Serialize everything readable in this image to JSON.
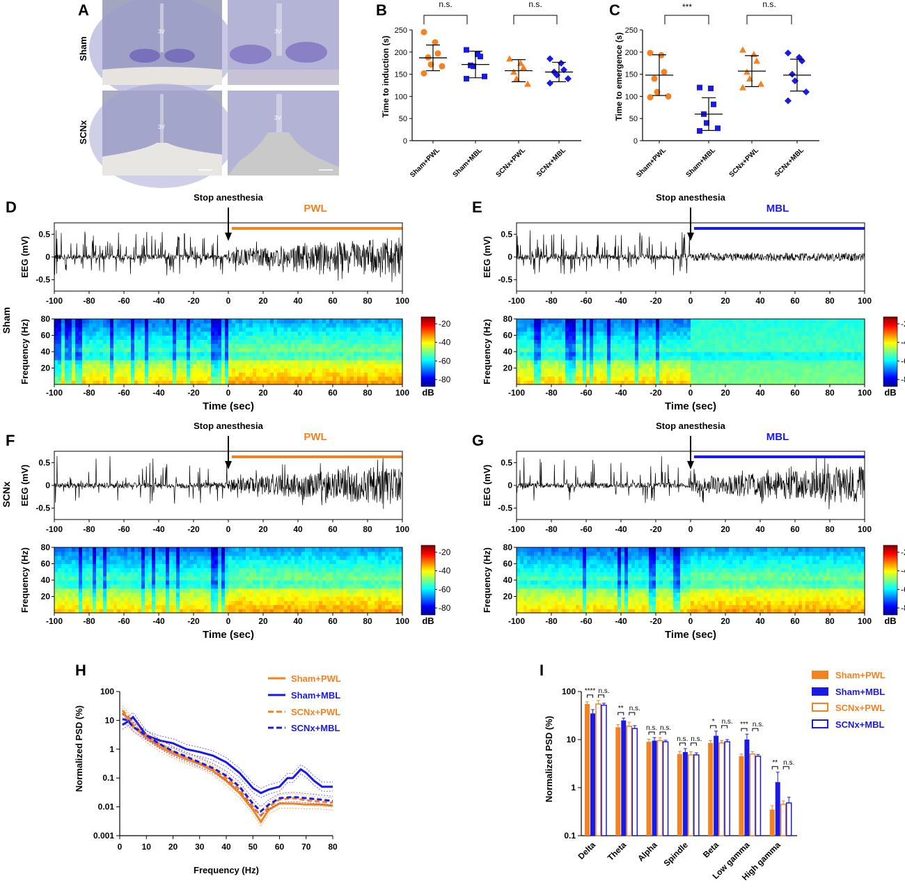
{
  "panels": {
    "A": "A",
    "B": "B",
    "C": "C",
    "D": "D",
    "E": "E",
    "F": "F",
    "G": "G",
    "H": "H",
    "I": "I"
  },
  "row_labels": {
    "sham": "Sham",
    "scnx": "SCNx"
  },
  "histology": {
    "ventricle_label": "3V"
  },
  "colors": {
    "orange": "#F58220",
    "blue": "#1A1AE6",
    "black": "#000000",
    "background": "#ffffff"
  },
  "eeg": {
    "stop_label": "Stop anesthesia",
    "ylabel_eeg": "EEG (mV)",
    "ylabel_spec": "Frequency (Hz)",
    "xlabel": "Time (sec)",
    "colorbar_unit": "dB",
    "colorbar_ticks": [
      "-20",
      "-40",
      "-60",
      "-80"
    ],
    "eeg_yticks": [
      "0.5",
      "0",
      "-0.5"
    ],
    "spec_yticks": [
      "80",
      "60",
      "40",
      "20"
    ],
    "xticks": [
      "-100",
      "-80",
      "-60",
      "-40",
      "-20",
      "0",
      "20",
      "40",
      "60",
      "80",
      "100"
    ],
    "panel_D": {
      "group": "PWL"
    },
    "panel_E": {
      "group": "MBL"
    },
    "panel_F": {
      "group": "PWL"
    },
    "panel_G": {
      "group": "MBL"
    }
  },
  "chart_data": [
    {
      "id": "B",
      "type": "scatter",
      "ylabel": "Time to induction (s)",
      "ylim": [
        0,
        250
      ],
      "yticks": [
        0,
        50,
        100,
        150,
        200,
        250
      ],
      "categories": [
        "Sham+PWL",
        "Sham+MBL",
        "SCNx+PWL",
        "SCNx+MBL"
      ],
      "groups": [
        {
          "name": "Sham+PWL",
          "mean": 187,
          "sd": 29,
          "points": [
            245,
            222,
            197,
            188,
            172,
            168,
            152
          ]
        },
        {
          "name": "Sham+MBL",
          "mean": 172,
          "sd": 30,
          "points": [
            205,
            195,
            190,
            170,
            168,
            145,
            140
          ]
        },
        {
          "name": "SCNx+PWL",
          "mean": 158,
          "sd": 25,
          "points": [
            185,
            175,
            165,
            155,
            140,
            128
          ]
        },
        {
          "name": "SCNx+MBL",
          "mean": 155,
          "sd": 22,
          "points": [
            185,
            175,
            160,
            155,
            148,
            140,
            130
          ]
        }
      ],
      "comparisons": [
        {
          "label": "n.s."
        },
        {
          "label": "n.s."
        }
      ]
    },
    {
      "id": "C",
      "type": "scatter",
      "ylabel": "Time to emergence (s)",
      "ylim": [
        0,
        250
      ],
      "yticks": [
        0,
        50,
        100,
        150,
        200,
        250
      ],
      "categories": [
        "Sham+PWL",
        "Sham+MBL",
        "SCNx+PWL",
        "SCNx+MBL"
      ],
      "groups": [
        {
          "name": "Sham+PWL",
          "mean": 148,
          "sd": 46,
          "points": [
            198,
            193,
            155,
            140,
            110,
            100,
            98
          ]
        },
        {
          "name": "Sham+MBL",
          "mean": 60,
          "sd": 37,
          "points": [
            120,
            118,
            82,
            60,
            40,
            28,
            22
          ]
        },
        {
          "name": "SCNx+PWL",
          "mean": 157,
          "sd": 35,
          "points": [
            205,
            195,
            180,
            155,
            140,
            128,
            120
          ]
        },
        {
          "name": "SCNx+MBL",
          "mean": 148,
          "sd": 36,
          "points": [
            198,
            188,
            180,
            150,
            135,
            110,
            90
          ]
        }
      ],
      "comparisons": [
        {
          "label": "***"
        },
        {
          "label": "n.s."
        }
      ]
    },
    {
      "id": "H",
      "type": "line",
      "xlabel": "Frequency (Hz)",
      "ylabel": "Normalized PSD (%)",
      "xlim": [
        0,
        80
      ],
      "ylim": [
        0.001,
        100
      ],
      "yscale": "log",
      "xticks": [
        0,
        10,
        20,
        30,
        40,
        50,
        60,
        70,
        80
      ],
      "yticks": [
        0.001,
        0.01,
        0.1,
        1,
        10,
        100
      ],
      "ytick_labels": [
        "0.001",
        "0.01",
        "0.1",
        "1",
        "10",
        "100"
      ],
      "series": [
        {
          "name": "Sham+PWL",
          "color": "#F58220",
          "dash": false,
          "x": [
            1,
            3,
            5,
            10,
            15,
            20,
            25,
            30,
            35,
            40,
            45,
            50,
            53,
            56,
            60,
            65,
            70,
            75,
            80
          ],
          "y": [
            18,
            12,
            6,
            2.5,
            1.2,
            0.7,
            0.45,
            0.3,
            0.18,
            0.08,
            0.03,
            0.008,
            0.003,
            0.008,
            0.013,
            0.013,
            0.012,
            0.012,
            0.011
          ]
        },
        {
          "name": "Sham+MBL",
          "color": "#1A1AE6",
          "dash": false,
          "x": [
            1,
            3,
            5,
            10,
            15,
            20,
            25,
            30,
            35,
            40,
            45,
            50,
            53,
            56,
            60,
            63,
            65,
            68,
            70,
            73,
            76,
            80
          ],
          "y": [
            7,
            9,
            13,
            3,
            2,
            1.6,
            1.0,
            0.8,
            0.6,
            0.35,
            0.15,
            0.045,
            0.03,
            0.04,
            0.05,
            0.1,
            0.1,
            0.2,
            0.15,
            0.08,
            0.05,
            0.05
          ]
        },
        {
          "name": "SCNx+PWL",
          "color": "#F58220",
          "dash": true,
          "x": [
            1,
            3,
            5,
            10,
            15,
            20,
            25,
            30,
            35,
            40,
            45,
            50,
            53,
            56,
            60,
            65,
            70,
            75,
            80
          ],
          "y": [
            22,
            14,
            7,
            3,
            1.5,
            0.8,
            0.5,
            0.33,
            0.2,
            0.1,
            0.04,
            0.01,
            0.005,
            0.01,
            0.018,
            0.02,
            0.017,
            0.015,
            0.014
          ]
        },
        {
          "name": "SCNx+MBL",
          "color": "#1A1AE6",
          "dash": true,
          "x": [
            1,
            3,
            5,
            10,
            15,
            20,
            25,
            30,
            35,
            40,
            45,
            50,
            53,
            56,
            60,
            65,
            70,
            75,
            80
          ],
          "y": [
            11,
            10,
            6,
            3,
            1.5,
            0.85,
            0.55,
            0.35,
            0.22,
            0.12,
            0.05,
            0.013,
            0.007,
            0.012,
            0.02,
            0.022,
            0.02,
            0.018,
            0.016
          ]
        }
      ]
    },
    {
      "id": "I",
      "type": "bar",
      "ylabel": "Normalized PSD (%)",
      "ylim": [
        0.1,
        100
      ],
      "yscale": "log",
      "yticks": [
        0.1,
        1,
        10,
        100
      ],
      "ytick_labels": [
        "0.1",
        "1",
        "10",
        "100"
      ],
      "categories": [
        "Delta",
        "Theta",
        "Alpha",
        "Spindle",
        "Beta",
        "Low gamma",
        "High gamma"
      ],
      "series": [
        {
          "name": "Sham+PWL",
          "color": "#F58220",
          "filled": true,
          "values": [
            55,
            18,
            9,
            5,
            8.5,
            4.5,
            0.35
          ],
          "errors": [
            6,
            2.5,
            1.2,
            0.7,
            1,
            0.5,
            0.07
          ]
        },
        {
          "name": "Sham+MBL",
          "color": "#1A1AE6",
          "filled": true,
          "values": [
            35,
            25,
            9.5,
            5.5,
            12,
            10,
            1.3
          ],
          "errors": [
            7,
            3,
            1.5,
            1,
            3,
            3,
            0.8
          ]
        },
        {
          "name": "SCNx+PWL",
          "color": "#F58220",
          "filled": false,
          "values": [
            55,
            19,
            9.5,
            4.8,
            8.5,
            5,
            0.45
          ],
          "errors": [
            10,
            4,
            1.5,
            0.8,
            1,
            0.6,
            0.08
          ]
        },
        {
          "name": "SCNx+MBL",
          "color": "#1A1AE6",
          "filled": false,
          "values": [
            52,
            17,
            9,
            4.8,
            9,
            4.5,
            0.48
          ],
          "errors": [
            5,
            2.5,
            0.7,
            0.5,
            1,
            0.4,
            0.15
          ]
        }
      ],
      "significance": [
        [
          "****",
          "n.s."
        ],
        [
          "**",
          "n.s."
        ],
        [
          "n.s.",
          "n.s."
        ],
        [
          "n.s.",
          "n.s."
        ],
        [
          "*",
          "n.s."
        ],
        [
          "***",
          "n.s."
        ],
        [
          "**",
          "n.s."
        ]
      ]
    }
  ]
}
